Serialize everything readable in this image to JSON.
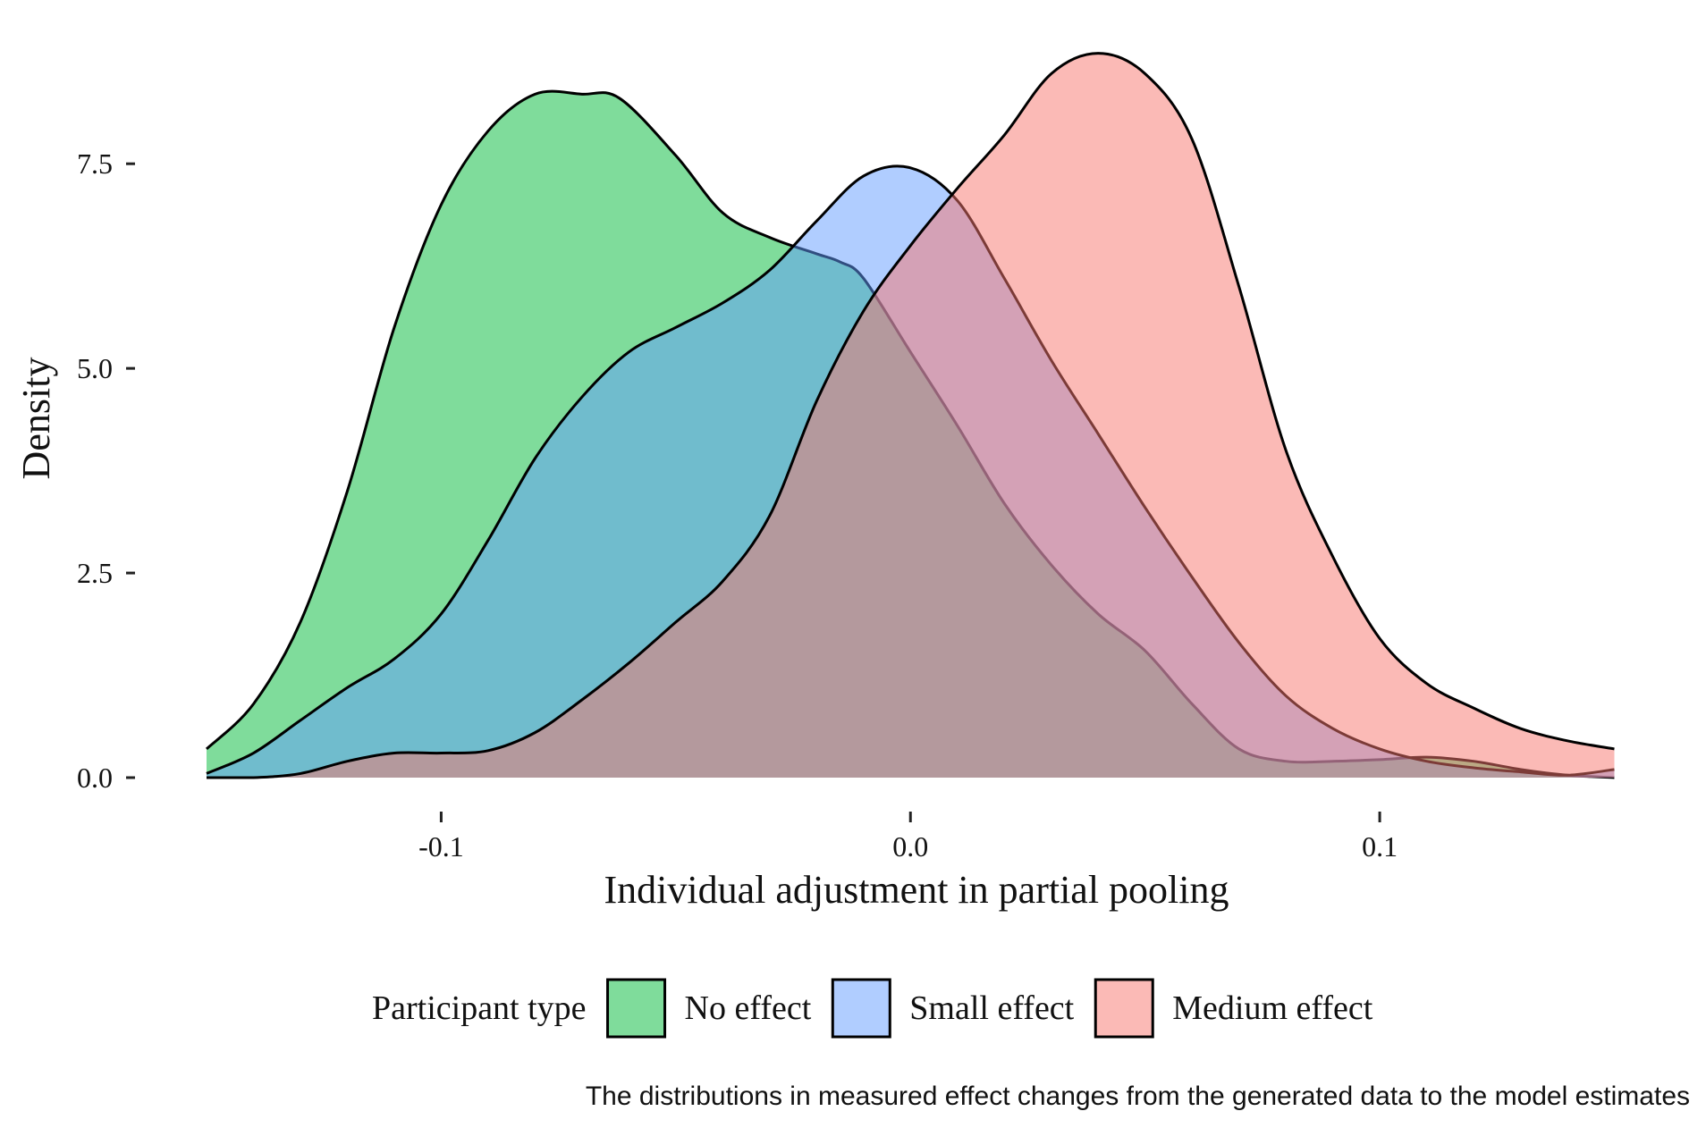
{
  "chart_data": {
    "type": "area",
    "title": "",
    "xlabel": "Individual adjustment in partial pooling",
    "ylabel": "Density",
    "xlim": [
      -0.15,
      0.152
    ],
    "ylim": [
      0,
      8.9
    ],
    "x_ticks": [
      -0.1,
      0.0,
      0.1
    ],
    "x_tick_labels": [
      "-0.1",
      "0.0",
      "0.1"
    ],
    "y_ticks": [
      0,
      2.5,
      5.0,
      7.5
    ],
    "y_tick_labels": [
      "0.0",
      "2.5",
      "5.0",
      "7.5"
    ],
    "grid": false,
    "legend": {
      "title": "Participant type",
      "position": "bottom"
    },
    "caption": "The distributions in measured effect changes from the generated data to the model estimates",
    "colors": {
      "No effect": "#00BA38",
      "Small effect": "#619CFF",
      "Medium effect": "#F8766D"
    },
    "fill_opacity": 0.5,
    "series": [
      {
        "name": "No effect",
        "x": [
          -0.15,
          -0.14,
          -0.13,
          -0.12,
          -0.11,
          -0.1,
          -0.09,
          -0.08,
          -0.07,
          -0.062,
          -0.05,
          -0.04,
          -0.03,
          -0.02,
          -0.015,
          -0.01,
          0.0,
          0.01,
          0.02,
          0.03,
          0.04,
          0.05,
          0.06,
          0.07,
          0.08,
          0.09,
          0.1,
          0.11,
          0.12,
          0.13,
          0.14,
          0.15
        ],
        "y": [
          0.35,
          0.9,
          1.9,
          3.5,
          5.5,
          7.0,
          7.9,
          8.35,
          8.35,
          8.3,
          7.6,
          6.9,
          6.6,
          6.4,
          6.3,
          6.1,
          5.2,
          4.3,
          3.35,
          2.6,
          2.0,
          1.55,
          0.9,
          0.35,
          0.2,
          0.2,
          0.22,
          0.25,
          0.2,
          0.1,
          0.03,
          0.0
        ]
      },
      {
        "name": "Small effect",
        "x": [
          -0.15,
          -0.14,
          -0.13,
          -0.12,
          -0.11,
          -0.1,
          -0.09,
          -0.08,
          -0.07,
          -0.06,
          -0.05,
          -0.04,
          -0.03,
          -0.02,
          -0.01,
          0.0,
          0.01,
          0.02,
          0.03,
          0.04,
          0.05,
          0.06,
          0.07,
          0.08,
          0.09,
          0.1,
          0.11,
          0.12,
          0.13,
          0.14,
          0.15
        ],
        "y": [
          0.05,
          0.3,
          0.7,
          1.1,
          1.45,
          2.0,
          2.9,
          3.9,
          4.65,
          5.2,
          5.5,
          5.8,
          6.2,
          6.8,
          7.35,
          7.45,
          7.05,
          6.1,
          5.1,
          4.2,
          3.3,
          2.45,
          1.65,
          1.0,
          0.6,
          0.35,
          0.2,
          0.12,
          0.07,
          0.03,
          0.1
        ]
      },
      {
        "name": "Medium effect",
        "x": [
          -0.15,
          -0.14,
          -0.13,
          -0.12,
          -0.11,
          -0.1,
          -0.09,
          -0.08,
          -0.07,
          -0.06,
          -0.05,
          -0.04,
          -0.03,
          -0.02,
          -0.01,
          0.0,
          0.01,
          0.02,
          0.03,
          0.04,
          0.05,
          0.06,
          0.07,
          0.08,
          0.09,
          0.1,
          0.11,
          0.12,
          0.13,
          0.14,
          0.15
        ],
        "y": [
          0.0,
          0.0,
          0.05,
          0.2,
          0.3,
          0.3,
          0.33,
          0.55,
          0.95,
          1.4,
          1.9,
          2.4,
          3.2,
          4.6,
          5.7,
          6.5,
          7.2,
          7.85,
          8.6,
          8.85,
          8.6,
          7.8,
          6.0,
          4.0,
          2.7,
          1.7,
          1.15,
          0.85,
          0.6,
          0.45,
          0.35
        ]
      }
    ]
  }
}
